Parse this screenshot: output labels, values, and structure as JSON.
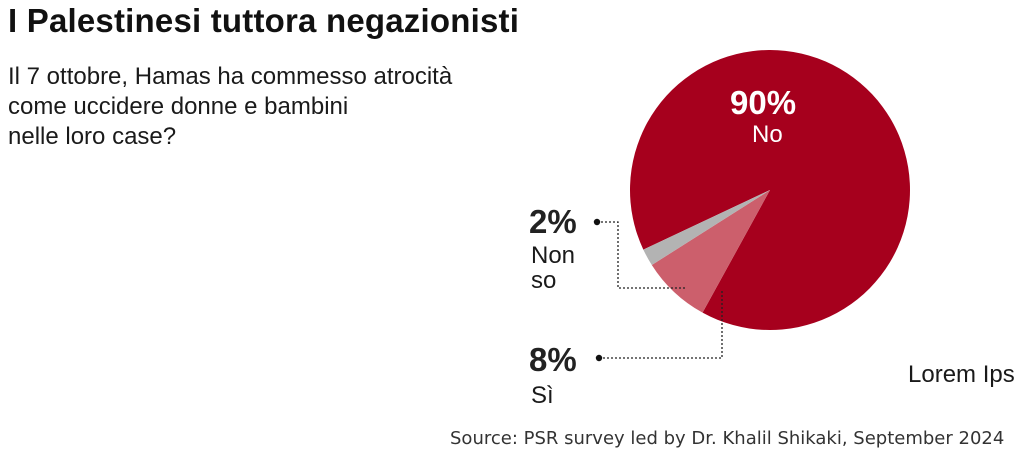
{
  "title": "I Palestinesi tuttora negazionisti",
  "question_lines": [
    "Il 7 ottobre, Hamas ha commesso atrocità",
    "come uccidere donne e bambini",
    "nelle loro case?"
  ],
  "chart_data": {
    "type": "pie",
    "slices": [
      {
        "label": "No",
        "value": 90,
        "value_label": "90%",
        "color": "#a6001d"
      },
      {
        "label": "Sì",
        "value": 8,
        "value_label": "8%",
        "color": "#cc5f6c"
      },
      {
        "label": "Non so",
        "value": 2,
        "value_label": "2%",
        "color": "#b3b3b3"
      }
    ]
  },
  "labels": {
    "no_pct": "90%",
    "no_text": "No",
    "nonso_pct": "2%",
    "nonso_line1": "Non",
    "nonso_line2": "so",
    "si_pct": "8%",
    "si_text": "Sì"
  },
  "watermark": "Lorem Ips",
  "source": "Source: PSR survey led by Dr. Khalil Shikaki, September 2024"
}
